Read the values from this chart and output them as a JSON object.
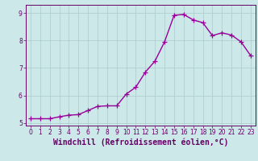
{
  "x": [
    0,
    1,
    2,
    3,
    4,
    5,
    6,
    7,
    8,
    9,
    10,
    11,
    12,
    13,
    14,
    15,
    16,
    17,
    18,
    19,
    20,
    21,
    22,
    23
  ],
  "y": [
    5.15,
    5.15,
    5.15,
    5.22,
    5.28,
    5.3,
    5.45,
    5.6,
    5.62,
    5.62,
    6.05,
    6.3,
    6.85,
    7.25,
    7.95,
    8.92,
    8.95,
    8.75,
    8.65,
    8.18,
    8.28,
    8.2,
    7.95,
    7.45
  ],
  "line_color": "#990099",
  "marker": "+",
  "marker_size": 4,
  "xlim": [
    -0.5,
    23.5
  ],
  "ylim": [
    4.9,
    9.3
  ],
  "yticks": [
    5,
    6,
    7,
    8,
    9
  ],
  "xticks": [
    0,
    1,
    2,
    3,
    4,
    5,
    6,
    7,
    8,
    9,
    10,
    11,
    12,
    13,
    14,
    15,
    16,
    17,
    18,
    19,
    20,
    21,
    22,
    23
  ],
  "xlabel": "Windchill (Refroidissement éolien,°C)",
  "background_color": "#cce8e8",
  "grid_color": "#aacccc",
  "spine_color": "#660066",
  "tick_color": "#660066",
  "label_color": "#660066",
  "tick_fontsize": 5.5,
  "xlabel_fontsize": 7.0,
  "linewidth": 1.0,
  "markeredgewidth": 0.9
}
